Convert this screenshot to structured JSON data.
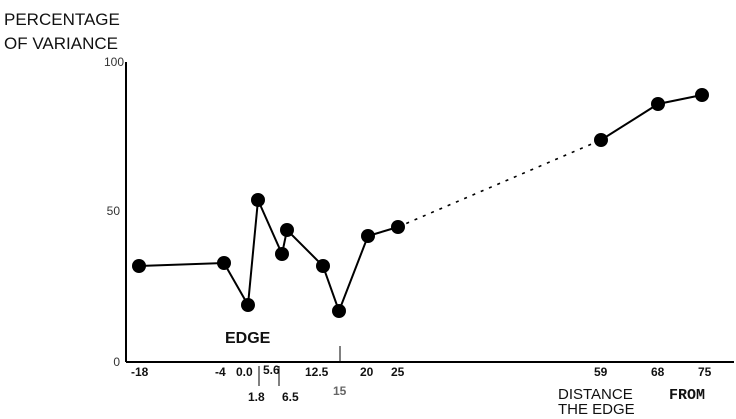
{
  "chart_data": {
    "type": "line",
    "ylabel_lines": [
      "PERCENTAGE",
      "OF VARIANCE"
    ],
    "xlabel_parts": [
      "DISTANCE",
      "FROM"
    ],
    "xlabel_line2": "THE EDGE",
    "annotation": "EDGE",
    "ylim": [
      0,
      100
    ],
    "y_ticks": [
      "0",
      "50",
      "100"
    ],
    "x_tick_labels": [
      "-18",
      "-4",
      "0.0",
      "5.6",
      "12.5",
      "20",
      "25",
      "59",
      "68",
      "75"
    ],
    "x_tick_labels_lower": [
      "1.8",
      "6.5",
      "15"
    ],
    "grid": false,
    "legend": "none",
    "series": [
      {
        "x": [
          -18,
          -4,
          -1,
          1.8,
          5,
          6.5,
          12.5,
          15,
          20,
          25
        ],
        "y": [
          32,
          33,
          19,
          54,
          36,
          44,
          32,
          17,
          42,
          45
        ],
        "style": "solid"
      },
      {
        "x": [
          25,
          59
        ],
        "y": [
          45,
          74
        ],
        "style": "dotted"
      },
      {
        "x": [
          59,
          68,
          75
        ],
        "y": [
          74,
          86,
          89
        ],
        "style": "solid"
      }
    ],
    "point_color": "#000000",
    "line_color": "#000000"
  }
}
